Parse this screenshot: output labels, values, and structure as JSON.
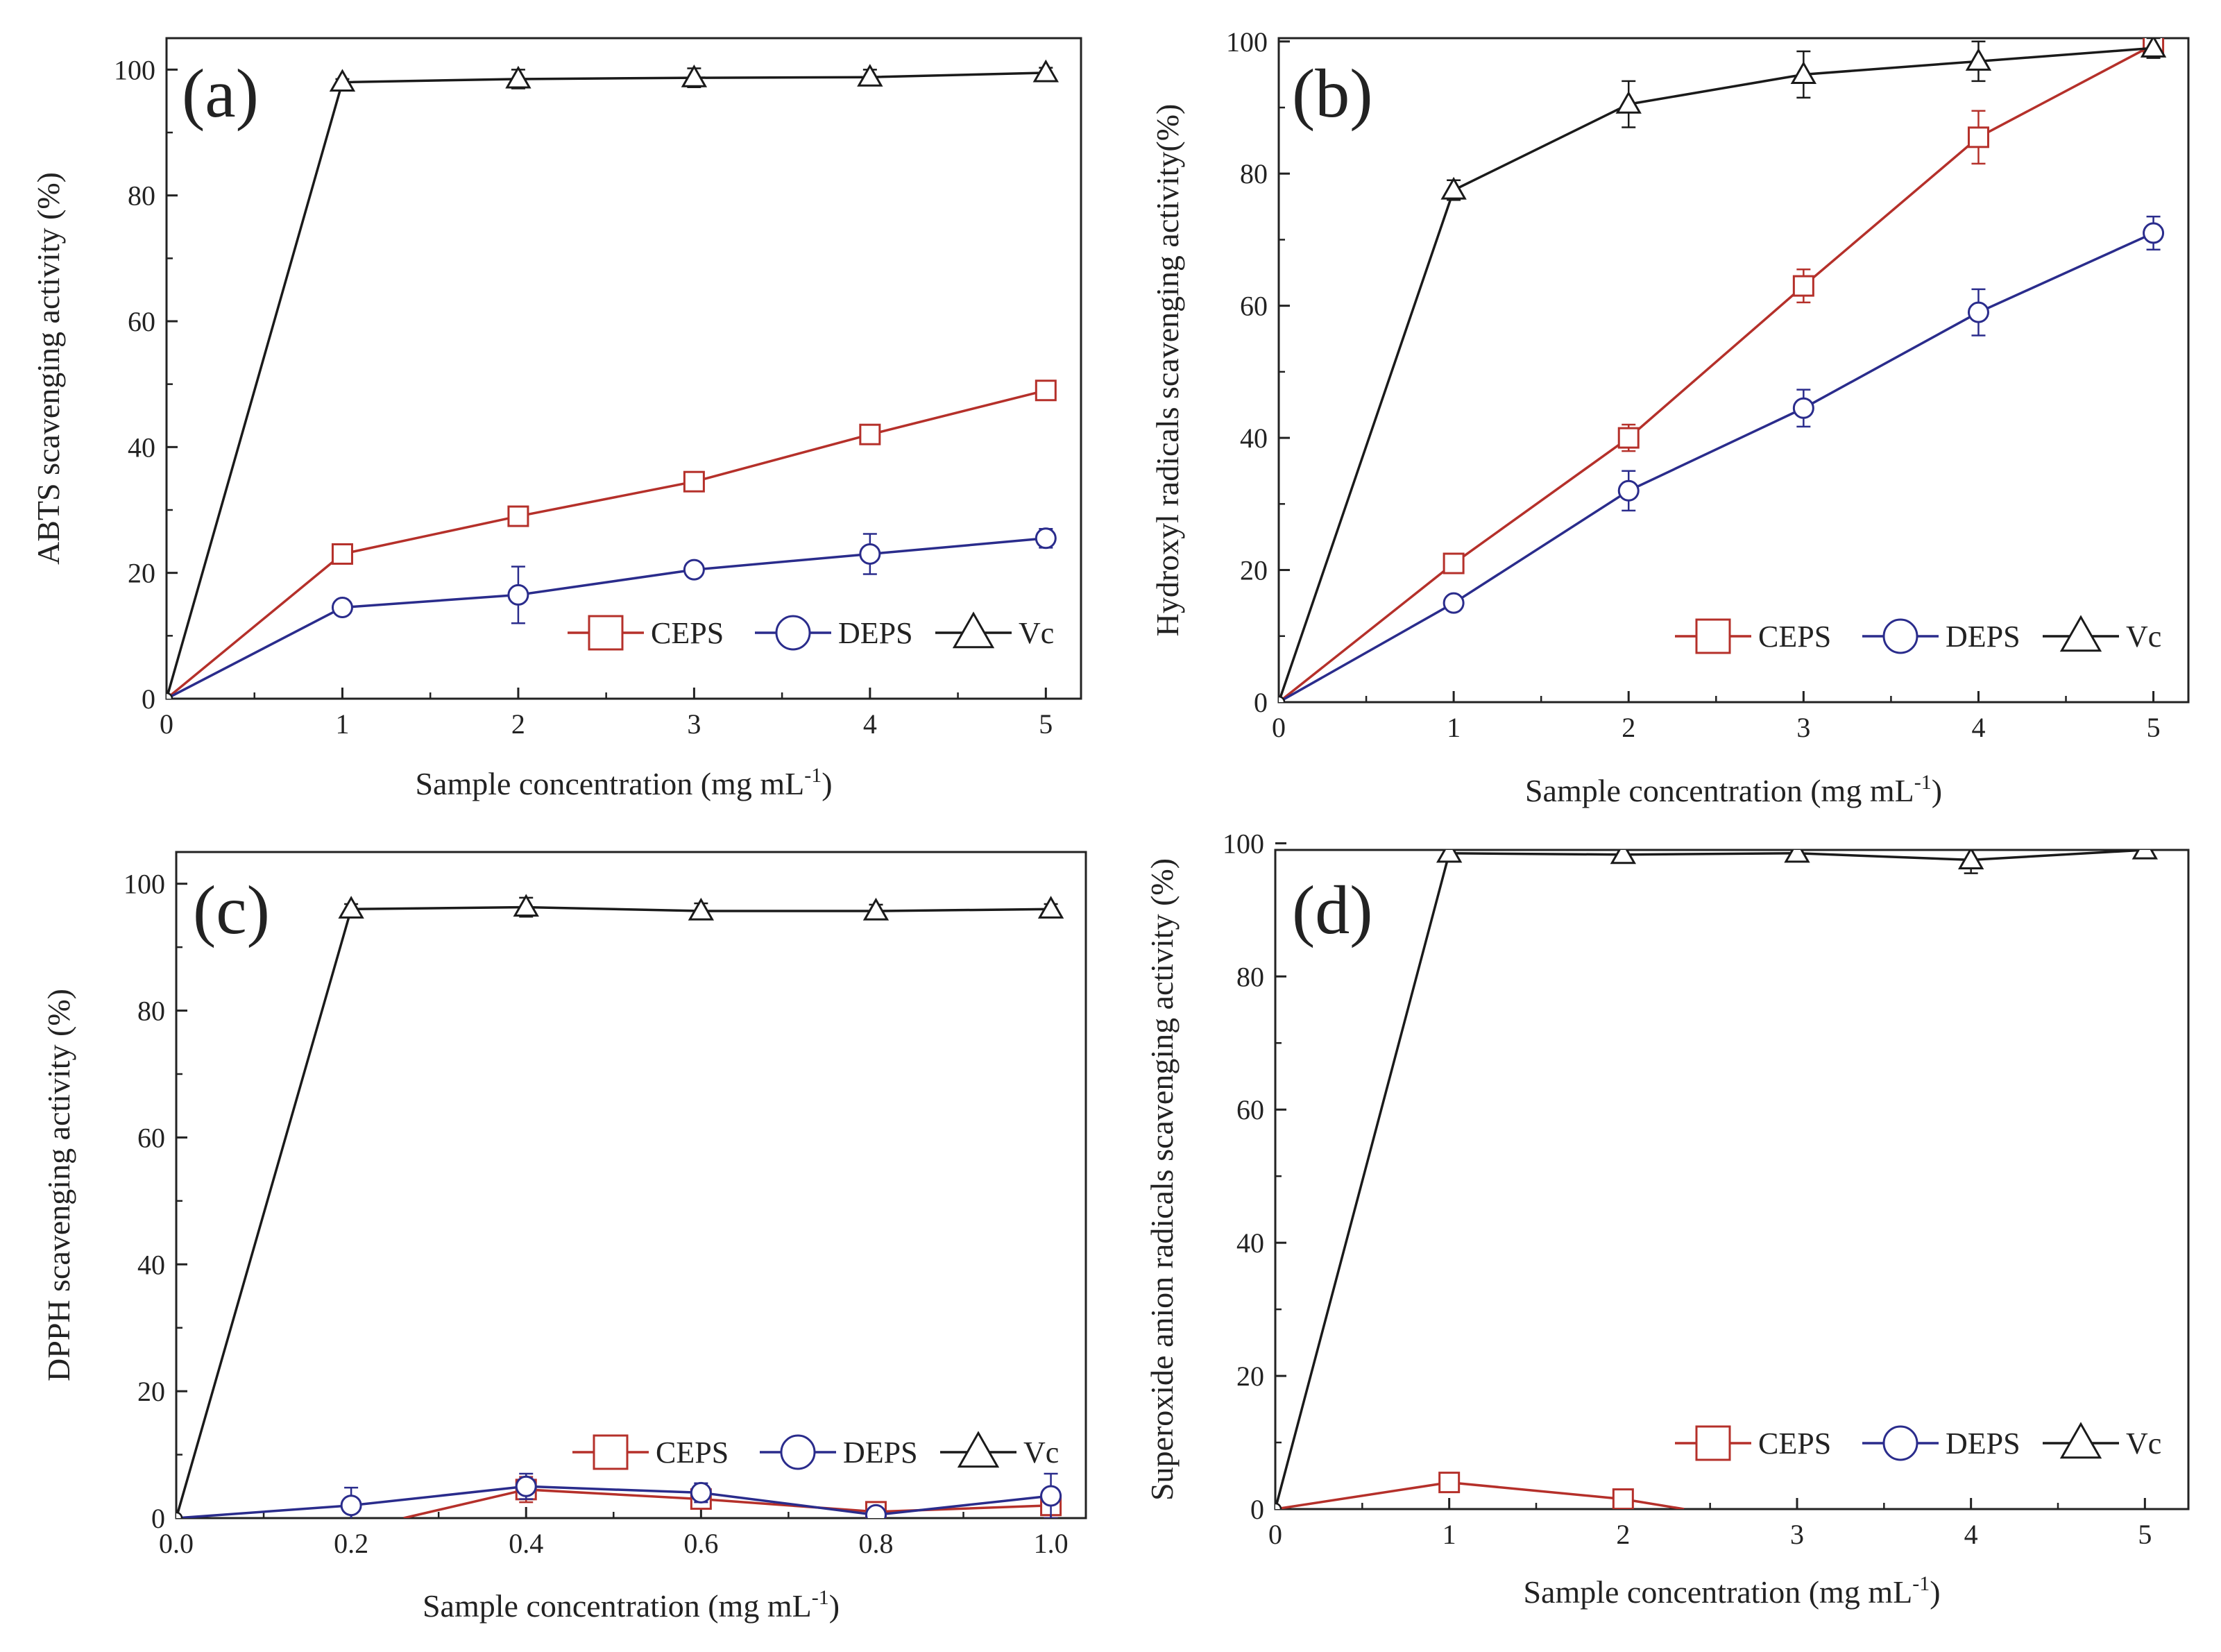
{
  "figure": {
    "colors": {
      "CEPS": "#b5302a",
      "DEPS": "#2a2c8c",
      "Vc": "#1a1a1a",
      "axis": "#222222"
    }
  },
  "chart_data": [
    {
      "type": "line",
      "panel": "(a)",
      "xlabel": "Sample concentration (mg mL",
      "xlabel_sup": "-1",
      "xlabel_end": ")",
      "ylabel": "ABTS scavenging activity (%)",
      "xlim": [
        0,
        5.2
      ],
      "ylim": [
        0,
        105
      ],
      "xticks": [
        0,
        1,
        2,
        3,
        4,
        5
      ],
      "xtick_labels": [
        "0",
        "1",
        "2",
        "3",
        "4",
        "5"
      ],
      "yticks": [
        0,
        20,
        40,
        60,
        80,
        100
      ],
      "ytick_labels": [
        "0",
        "20",
        "40",
        "60",
        "80",
        "100"
      ],
      "legend": [
        "CEPS",
        "DEPS",
        "Vc"
      ],
      "legend_position": "lower-right",
      "series": [
        {
          "name": "CEPS",
          "marker": "square",
          "x": [
            0,
            1,
            2,
            3,
            4,
            5
          ],
          "y": [
            0,
            23,
            29,
            34.5,
            42,
            49
          ],
          "err": [
            0,
            0.8,
            1,
            1.2,
            1.2,
            1
          ]
        },
        {
          "name": "DEPS",
          "marker": "circle",
          "x": [
            0,
            1,
            2,
            3,
            4,
            5
          ],
          "y": [
            0,
            14.5,
            16.5,
            20.5,
            23,
            25.5
          ],
          "err": [
            0,
            0.8,
            4.5,
            1,
            3.2,
            1.5
          ]
        },
        {
          "name": "Vc",
          "marker": "triangle",
          "x": [
            0,
            1,
            2,
            3,
            4,
            5
          ],
          "y": [
            0,
            98,
            98.5,
            98.7,
            98.8,
            99.5
          ],
          "err": [
            0,
            0.5,
            1.5,
            1.5,
            1.2,
            0.8
          ]
        }
      ]
    },
    {
      "type": "line",
      "panel": "(b)",
      "xlabel": "Sample concentration (mg mL",
      "xlabel_sup": "-1",
      "xlabel_end": ")",
      "ylabel": "Hydroxyl radicals scavenging activity(%)",
      "xlim": [
        0,
        5.2
      ],
      "ylim": [
        0,
        100.5
      ],
      "xticks": [
        0,
        1,
        2,
        3,
        4,
        5
      ],
      "xtick_labels": [
        "0",
        "1",
        "2",
        "3",
        "4",
        "5"
      ],
      "yticks": [
        0,
        20,
        40,
        60,
        80,
        100
      ],
      "ytick_labels": [
        "0",
        "20",
        "40",
        "60",
        "80",
        "100"
      ],
      "legend": [
        "CEPS",
        "DEPS",
        "Vc"
      ],
      "legend_position": "lower-right",
      "series": [
        {
          "name": "CEPS",
          "marker": "square",
          "x": [
            0,
            1,
            2,
            3,
            4,
            5
          ],
          "y": [
            0,
            21,
            40,
            63,
            85.5,
            99.5
          ],
          "err": [
            0,
            1,
            2,
            2.5,
            4,
            1
          ]
        },
        {
          "name": "DEPS",
          "marker": "circle",
          "x": [
            0,
            1,
            2,
            3,
            4,
            5
          ],
          "y": [
            0,
            15,
            32,
            44.5,
            59,
            71
          ],
          "err": [
            0,
            0.8,
            3,
            2.8,
            3.5,
            2.5
          ]
        },
        {
          "name": "Vc",
          "marker": "triangle",
          "x": [
            0,
            1,
            2,
            3,
            4,
            5
          ],
          "y": [
            0,
            77.5,
            90.5,
            95,
            97,
            99
          ],
          "err": [
            0,
            1.5,
            3.5,
            3.5,
            3,
            1.5
          ]
        }
      ]
    },
    {
      "type": "line",
      "panel": "(c)",
      "xlabel": "Sample concentration (mg mL",
      "xlabel_sup": "-1",
      "xlabel_end": ")",
      "ylabel": "DPPH scavenging activity (%)",
      "xlim": [
        0,
        1.04
      ],
      "ylim": [
        0,
        105
      ],
      "xticks": [
        0,
        0.2,
        0.4,
        0.6,
        0.8,
        1.0
      ],
      "xtick_labels": [
        "0.0",
        "0.2",
        "0.4",
        "0.6",
        "0.8",
        "1.0"
      ],
      "yticks": [
        0,
        20,
        40,
        60,
        80,
        100
      ],
      "ytick_labels": [
        "0",
        "20",
        "40",
        "60",
        "80",
        "100"
      ],
      "legend": [
        "CEPS",
        "DEPS",
        "Vc"
      ],
      "legend_position": "lower-right",
      "series": [
        {
          "name": "CEPS",
          "marker": "square",
          "x": [
            0.4,
            0.6,
            0.8,
            1.0
          ],
          "y": [
            4.5,
            3,
            1,
            2
          ],
          "err": [
            2,
            1.5,
            1,
            2
          ],
          "line_from": [
            0.26,
            0
          ]
        },
        {
          "name": "DEPS",
          "marker": "circle",
          "x": [
            0,
            0.2,
            0.4,
            0.6,
            0.8,
            1.0
          ],
          "y": [
            0,
            2,
            5,
            4,
            0.5,
            3.5
          ],
          "err": [
            0,
            2.8,
            2,
            1.5,
            1,
            3.5
          ]
        },
        {
          "name": "Vc",
          "marker": "triangle",
          "x": [
            0,
            0.2,
            0.4,
            0.6,
            0.8,
            1.0
          ],
          "y": [
            0,
            96,
            96.3,
            95.7,
            95.7,
            96
          ],
          "err": [
            0,
            0.8,
            1.5,
            1.2,
            1,
            0.8
          ]
        }
      ]
    },
    {
      "type": "line",
      "panel": "(d)",
      "xlabel": "Sample concentration (mg mL",
      "xlabel_sup": "-1",
      "xlabel_end": ")",
      "ylabel": "Superoxide anion radicals scavenging activity (%)",
      "xlim": [
        0,
        5.25
      ],
      "ylim": [
        0,
        99
      ],
      "xticks": [
        0,
        1,
        2,
        3,
        4,
        5
      ],
      "xtick_labels": [
        "0",
        "1",
        "2",
        "3",
        "4",
        "5"
      ],
      "yticks": [
        0,
        20,
        40,
        60,
        80,
        100
      ],
      "ytick_labels": [
        "0",
        "20",
        "40",
        "60",
        "80",
        "100"
      ],
      "legend": [
        "CEPS",
        "DEPS",
        "Vc"
      ],
      "legend_position": "lower-right",
      "series": [
        {
          "name": "CEPS",
          "marker": "square",
          "x": [
            0,
            1,
            2
          ],
          "y": [
            0,
            4,
            1.5
          ],
          "err": [
            0,
            0.8,
            0.8
          ],
          "line_to": [
            2.35,
            0
          ]
        },
        {
          "name": "DEPS",
          "marker": "circle",
          "x": [],
          "y": [],
          "err": []
        },
        {
          "name": "Vc",
          "marker": "triangle",
          "x": [
            0,
            1,
            2,
            3,
            4,
            5
          ],
          "y": [
            0,
            98.5,
            98.3,
            98.5,
            97.5,
            99
          ],
          "err": [
            0,
            0.8,
            1,
            1,
            2,
            0.8
          ]
        }
      ]
    }
  ]
}
